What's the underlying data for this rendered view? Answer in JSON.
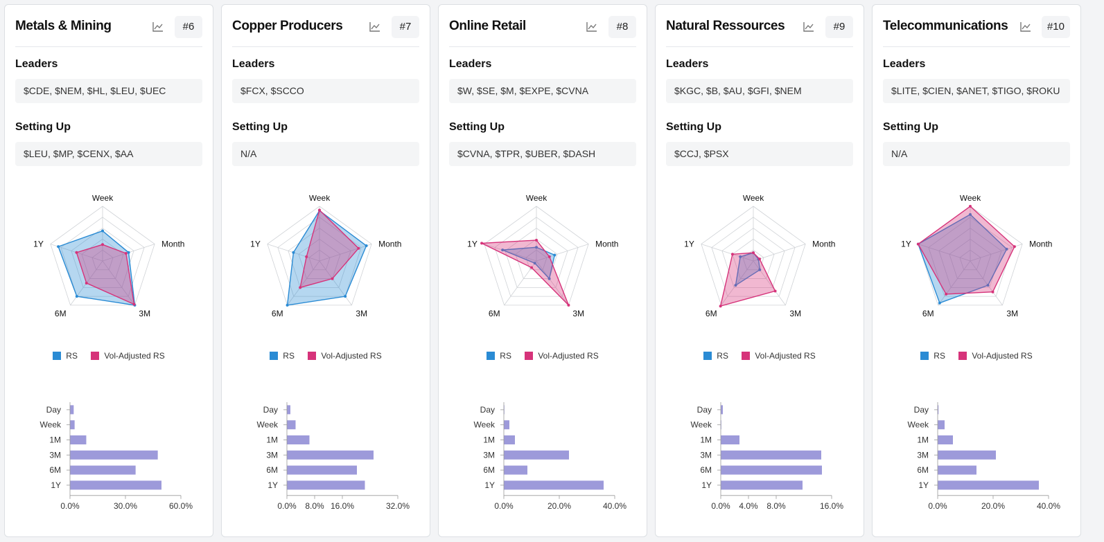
{
  "colors": {
    "rs": "#2a8bd4",
    "vol_adjusted": "#d6337a",
    "bar": "#9d9ada"
  },
  "legend": {
    "rs": "RS",
    "vol": "Vol-Adjusted RS"
  },
  "sections": {
    "leaders": "Leaders",
    "setting_up": "Setting Up"
  },
  "cards": [
    {
      "title": "Metals & Mining",
      "rank": "#6",
      "leaders": "$CDE, $NEM, $HL, $LEU, $UEC",
      "setting_up": "$LEU, $MP, $CENX, $AA"
    },
    {
      "title": "Copper Producers",
      "rank": "#7",
      "leaders": "$FCX, $SCCO",
      "setting_up": "N/A"
    },
    {
      "title": "Online Retail",
      "rank": "#8",
      "leaders": "$W, $SE, $M, $EXPE, $CVNA",
      "setting_up": "$CVNA, $TPR, $UBER, $DASH"
    },
    {
      "title": "Natural Ressources",
      "rank": "#9",
      "leaders": "$KGC, $B, $AU, $GFI, $NEM",
      "setting_up": "$CCJ, $PSX"
    },
    {
      "title": "Telecommunications",
      "rank": "#10",
      "leaders": "$LITE, $CIEN, $ANET, $TIGO, $ROKU",
      "setting_up": "N/A"
    }
  ],
  "chart_data": [
    {
      "type": "radar",
      "axes": [
        "Week",
        "Month",
        "3M",
        "6M",
        "1Y"
      ],
      "range": [
        0,
        1
      ],
      "series": [
        {
          "name": "RS",
          "values": [
            0.55,
            0.5,
            1.0,
            0.8,
            0.85
          ]
        },
        {
          "name": "Vol-Adjusted RS",
          "values": [
            0.3,
            0.45,
            0.98,
            0.5,
            0.5
          ]
        }
      ]
    },
    {
      "type": "bar",
      "categories": [
        "Day",
        "Week",
        "1M",
        "3M",
        "6M",
        "1Y"
      ],
      "values": [
        2.0,
        2.5,
        8.8,
        47.5,
        35.5,
        49.5
      ],
      "xlim": [
        0,
        60
      ],
      "xticks": [
        "0.0%",
        "30.0%",
        "60.0%"
      ]
    },
    {
      "type": "radar",
      "axes": [
        "Week",
        "Month",
        "3M",
        "6M",
        "1Y"
      ],
      "range": [
        0,
        1
      ],
      "series": [
        {
          "name": "RS",
          "values": [
            0.92,
            0.9,
            0.8,
            1.0,
            0.5
          ]
        },
        {
          "name": "Vol-Adjusted RS",
          "values": [
            0.93,
            0.75,
            0.4,
            0.6,
            0.25
          ]
        }
      ]
    },
    {
      "type": "bar",
      "categories": [
        "Day",
        "Week",
        "1M",
        "3M",
        "6M",
        "1Y"
      ],
      "values": [
        1.0,
        2.5,
        6.5,
        25.0,
        20.2,
        22.5
      ],
      "xlim": [
        0,
        32
      ],
      "xticks": [
        "0.0%",
        "8.0%",
        "16.0%",
        "32.0%"
      ]
    },
    {
      "type": "radar",
      "axes": [
        "Week",
        "Month",
        "3M",
        "6M",
        "1Y"
      ],
      "range": [
        0,
        1
      ],
      "series": [
        {
          "name": "RS",
          "values": [
            0.25,
            0.35,
            0.4,
            0.05,
            0.65
          ]
        },
        {
          "name": "Vol-Adjusted RS",
          "values": [
            0.38,
            0.25,
            1.0,
            0.15,
            1.05
          ]
        }
      ]
    },
    {
      "type": "bar",
      "categories": [
        "Day",
        "Week",
        "1M",
        "3M",
        "6M",
        "1Y"
      ],
      "values": [
        0.2,
        2.0,
        4.0,
        23.5,
        8.5,
        36.0
      ],
      "xlim": [
        0,
        40
      ],
      "xticks": [
        "0.0%",
        "20.0%",
        "40.0%"
      ]
    },
    {
      "type": "radar",
      "axes": [
        "Week",
        "Month",
        "3M",
        "6M",
        "1Y"
      ],
      "range": [
        0,
        1
      ],
      "series": [
        {
          "name": "RS",
          "values": [
            0.15,
            0.1,
            0.2,
            0.55,
            0.25
          ]
        },
        {
          "name": "Vol-Adjusted RS",
          "values": [
            0.15,
            0.12,
            0.68,
            1.02,
            0.4
          ]
        }
      ]
    },
    {
      "type": "bar",
      "categories": [
        "Day",
        "Week",
        "1M",
        "3M",
        "6M",
        "1Y"
      ],
      "values": [
        0.3,
        0.05,
        2.7,
        14.5,
        14.6,
        11.8
      ],
      "xlim": [
        0,
        16
      ],
      "xticks": [
        "0.0%",
        "4.0%",
        "8.0%",
        "16.0%"
      ]
    },
    {
      "type": "radar",
      "axes": [
        "Week",
        "Month",
        "3M",
        "6M",
        "1Y"
      ],
      "range": [
        0,
        1
      ],
      "series": [
        {
          "name": "RS",
          "values": [
            0.85,
            0.7,
            0.55,
            0.95,
            1.0
          ]
        },
        {
          "name": "Vol-Adjusted RS",
          "values": [
            1.0,
            0.85,
            0.7,
            0.75,
            1.0
          ]
        }
      ]
    },
    {
      "type": "bar",
      "categories": [
        "Day",
        "Week",
        "1M",
        "3M",
        "6M",
        "1Y"
      ],
      "values": [
        0.3,
        2.5,
        5.5,
        21.0,
        14.0,
        36.5
      ],
      "xlim": [
        0,
        40
      ],
      "xticks": [
        "0.0%",
        "20.0%",
        "40.0%"
      ]
    }
  ]
}
